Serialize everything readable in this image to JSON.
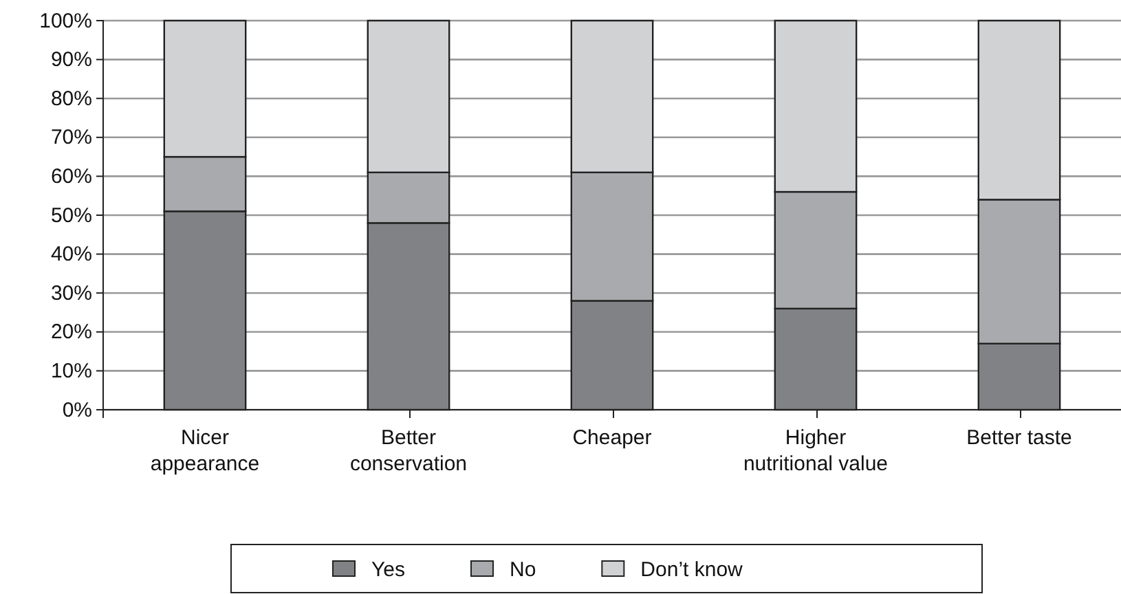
{
  "chart_data": {
    "type": "bar",
    "stacked": true,
    "categories": [
      "Nicer\nappearance",
      "Better\nconservation",
      "Cheaper",
      "Higher\nnutritional value",
      "Better taste"
    ],
    "series": [
      {
        "name": "Yes",
        "color": "#818285",
        "values": [
          51,
          48,
          28,
          26,
          17
        ]
      },
      {
        "name": "No",
        "color": "#a9aaad",
        "values": [
          14,
          13,
          33,
          30,
          37
        ]
      },
      {
        "name": "Don’t know",
        "color": "#d1d2d4",
        "values": [
          35,
          39,
          39,
          44,
          46
        ]
      }
    ],
    "ylim": [
      0,
      100
    ],
    "yticks": [
      {
        "value": 0,
        "label": "0%"
      },
      {
        "value": 10,
        "label": "10%"
      },
      {
        "value": 20,
        "label": "20%"
      },
      {
        "value": 30,
        "label": "30%"
      },
      {
        "value": 40,
        "label": "40%"
      },
      {
        "value": 50,
        "label": "50%"
      },
      {
        "value": 60,
        "label": "60%"
      },
      {
        "value": 70,
        "label": "70%"
      },
      {
        "value": 80,
        "label": "80%"
      },
      {
        "value": 90,
        "label": "90%"
      },
      {
        "value": 100,
        "label": "100%"
      }
    ],
    "grid": "y",
    "legend": "bottom"
  }
}
